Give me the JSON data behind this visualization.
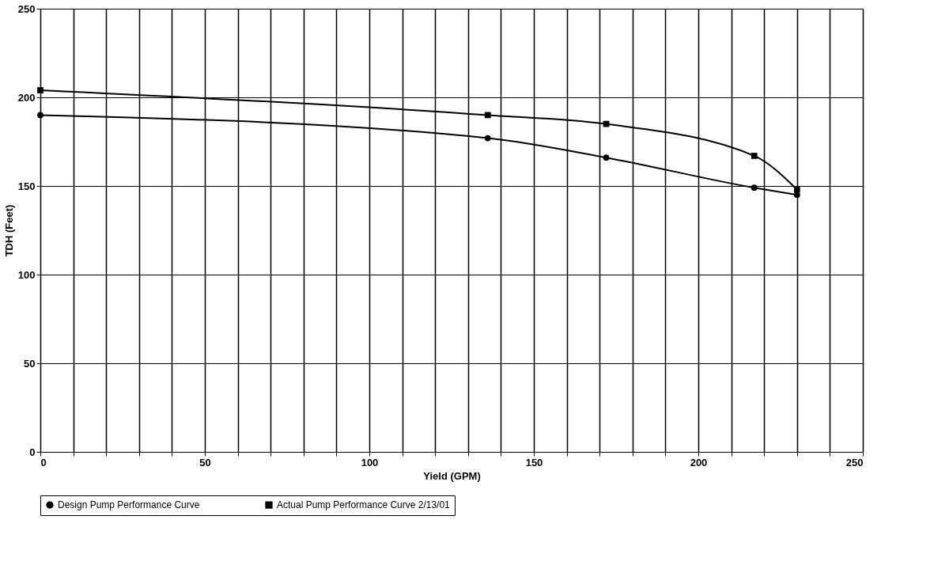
{
  "chart_data": {
    "type": "line",
    "xlabel": "Yield (GPM)",
    "ylabel": "TDH (Feet)",
    "xlim": [
      0,
      250
    ],
    "xticks": [
      0,
      50,
      100,
      150,
      200,
      250
    ],
    "ylim": [
      0,
      250
    ],
    "yticks": [
      0,
      50,
      100,
      150,
      200,
      250
    ],
    "grid": true,
    "legend": "bottom",
    "line_style": "solid",
    "series": [
      {
        "name": "Design Pump Performance Curve",
        "color": "#000000",
        "marker": "circle",
        "x": [
          0,
          136,
          172,
          217,
          230
        ],
        "values": [
          190,
          177,
          166,
          149,
          145
        ]
      },
      {
        "name": "Actual Pump Performance Curve 2/13/01",
        "color": "#000000",
        "marker": "square",
        "x": [
          0,
          136,
          172,
          217,
          230
        ],
        "values": [
          204,
          190,
          185,
          167,
          148
        ]
      }
    ]
  }
}
